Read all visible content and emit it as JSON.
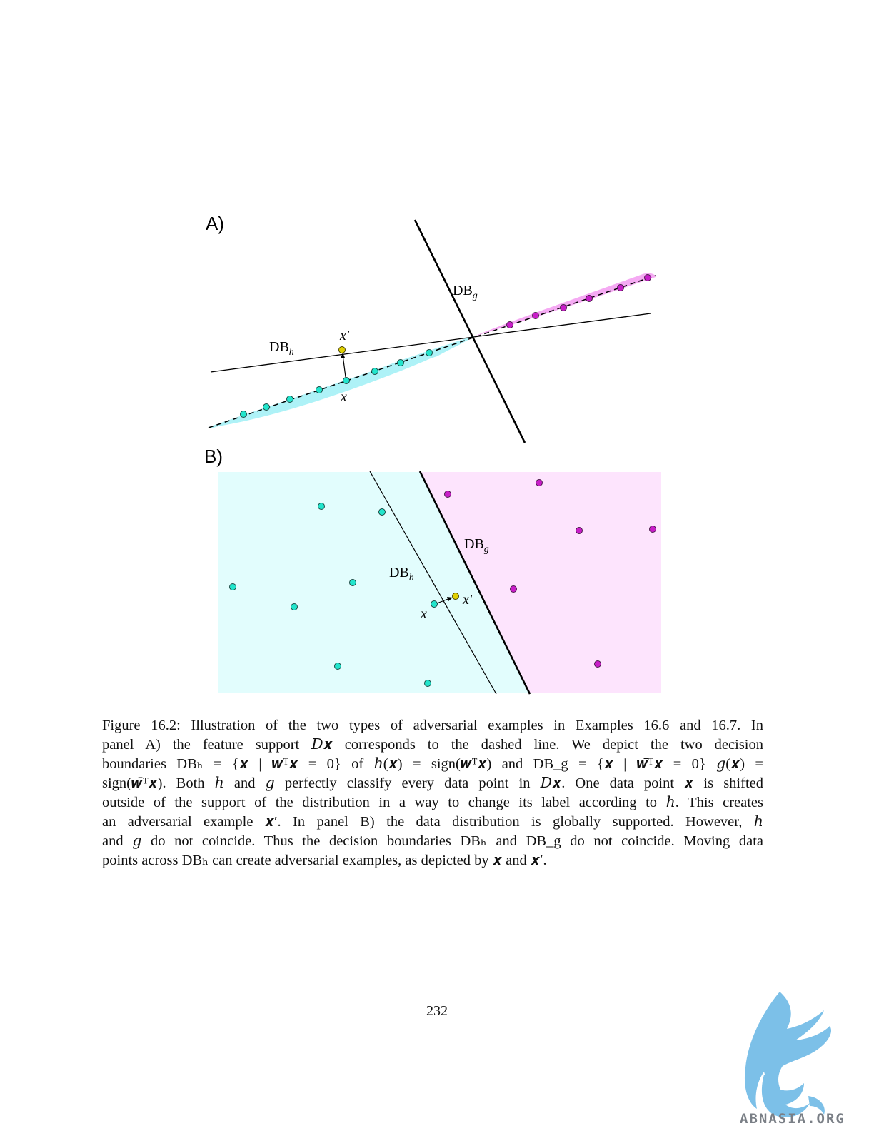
{
  "figure": {
    "panel_a_label": "A)",
    "panel_b_label": "B)",
    "label_dbg": "DB",
    "label_dbg_sub": "g",
    "label_dbh": "DB",
    "label_dbh_sub": "h",
    "label_x": "x",
    "label_xprime": "x′",
    "colors": {
      "class_h": "#22e5cc",
      "class_g": "#c81ec8",
      "adversarial": "#e0d000",
      "region_h": "#e2fdfd",
      "region_g": "#fde4fd",
      "band_h": "#aef2f7",
      "band_g": "#f5aaf3"
    }
  },
  "caption": {
    "lines": [
      "Figure 16.2: Illustration of the two types of adversarial examples in Examples 16.6 and 16.7. In",
      "panel A) the feature support 𝐷𝒙 corresponds to the dashed line. We depict the two decision",
      "boundaries DBₕ = {𝒙 | 𝒘ᵀ𝒙 = 0} of ℎ(𝒙) = sign(𝒘ᵀ𝒙) and DB_g = {𝒙 | 𝒘̄ᵀ𝒙 = 0} 𝑔(𝒙) =",
      "sign(𝒘̄ᵀ𝒙). Both ℎ and 𝑔 perfectly classify every data point in 𝐷𝒙. One data point 𝒙 is shifted",
      "outside of the support of the distribution in a way to change its label according to ℎ. This creates",
      "an adversarial example 𝒙′. In panel B) the data distribution is globally supported. However, ℎ",
      "and 𝑔 do not coincide. Thus the decision boundaries DBₕ and DB_g do not coincide. Moving data",
      "points across DBₕ can create adversarial examples, as depicted by 𝒙 and 𝒙′."
    ]
  },
  "page_number": "232",
  "watermark": {
    "text": "ABNASIA.ORG",
    "logo_icon": "griffin-logo-icon"
  }
}
